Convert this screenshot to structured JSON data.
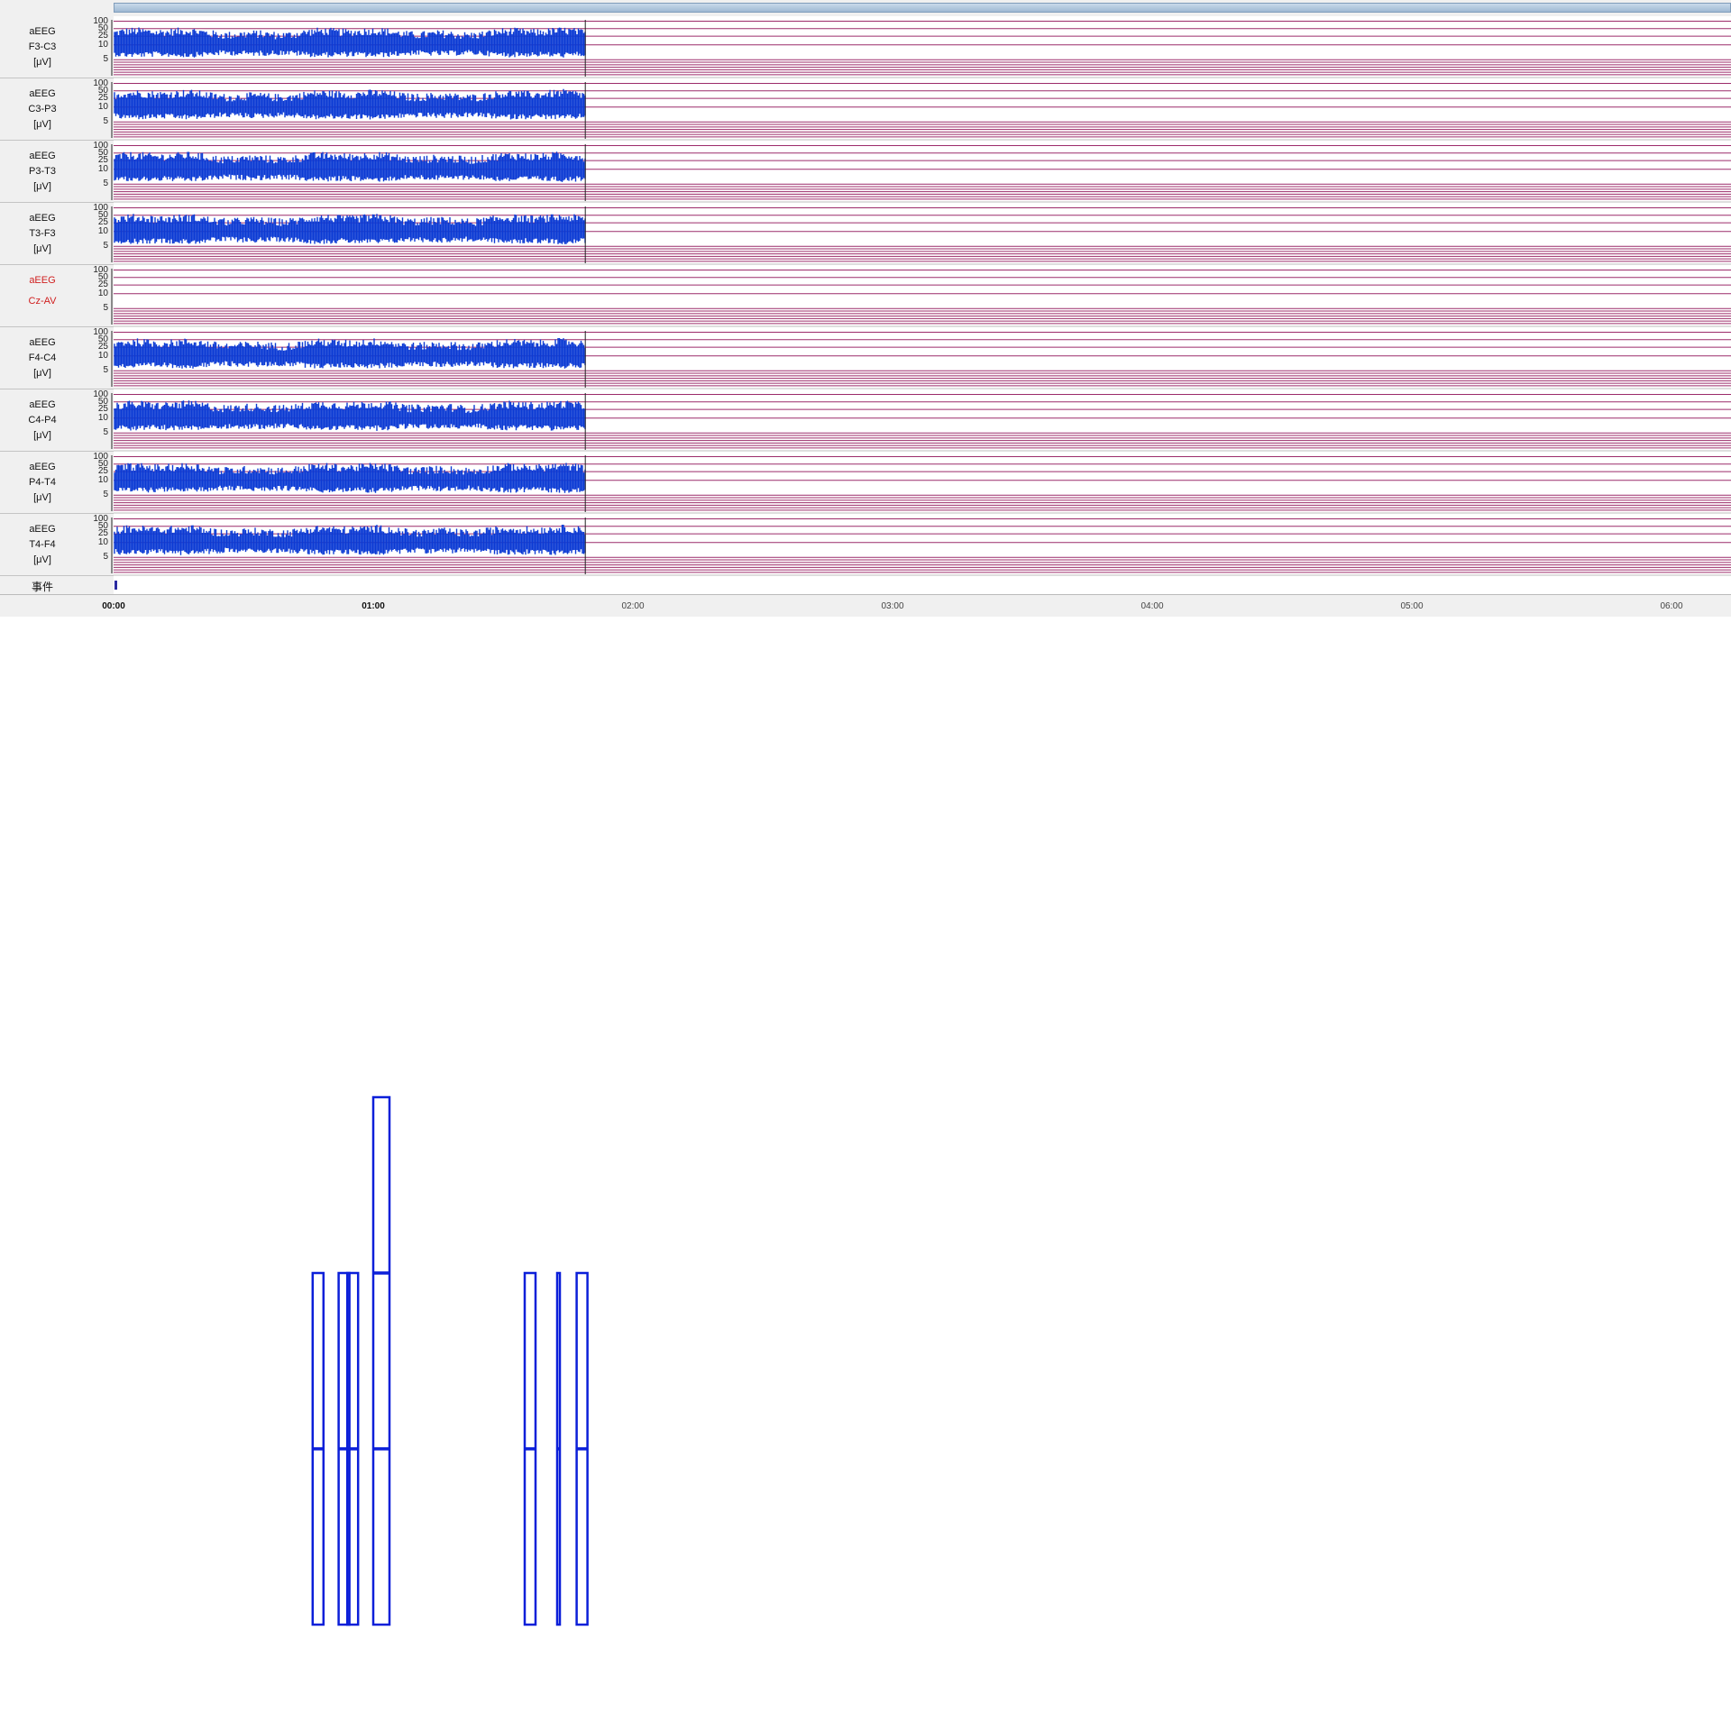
{
  "channels": [
    {
      "title": "aEEG",
      "lead": "F3-C3",
      "unit": "[μV]",
      "has_data": true,
      "active": false
    },
    {
      "title": "aEEG",
      "lead": "C3-P3",
      "unit": "[μV]",
      "has_data": true,
      "active": false
    },
    {
      "title": "aEEG",
      "lead": "P3-T3",
      "unit": "[μV]",
      "has_data": true,
      "active": false
    },
    {
      "title": "aEEG",
      "lead": "T3-F3",
      "unit": "[μV]",
      "has_data": true,
      "active": false
    },
    {
      "title": "aEEG",
      "lead": "Cz-AV",
      "unit": "",
      "has_data": false,
      "active": true
    },
    {
      "title": "aEEG",
      "lead": "F4-C4",
      "unit": "[μV]",
      "has_data": true,
      "active": false
    },
    {
      "title": "aEEG",
      "lead": "C4-P4",
      "unit": "[μV]",
      "has_data": true,
      "active": false
    },
    {
      "title": "aEEG",
      "lead": "P4-T4",
      "unit": "[μV]",
      "has_data": true,
      "active": false
    },
    {
      "title": "aEEG",
      "lead": "T4-F4",
      "unit": "[μV]",
      "has_data": true,
      "active": false
    }
  ],
  "scale_labels": [
    "100",
    "50",
    "25",
    "10",
    "5"
  ],
  "events_label": "事件",
  "time_ticks": [
    {
      "label": "00:00",
      "bold": true
    },
    {
      "label": "01:00",
      "bold": true
    },
    {
      "label": "02:00",
      "bold": false
    },
    {
      "label": "03:00",
      "bold": false
    },
    {
      "label": "04:00",
      "bold": false
    },
    {
      "label": "05:00",
      "bold": false
    },
    {
      "label": "06:00",
      "bold": false
    }
  ],
  "recording": {
    "recorded_end_time_min": 109
  },
  "colors": {
    "signal": "#0b3ad4",
    "grid": "#9c2b6a",
    "box": "#0b1fd9",
    "active_label": "#d02020"
  },
  "chart_data": {
    "type": "box",
    "boxes": [
      {
        "x_min": 46,
        "q1": 0,
        "median": 1,
        "q3": 2
      },
      {
        "x_min": 52,
        "q1": 0,
        "median": 1,
        "q3": 2
      },
      {
        "x_min": 54,
        "q1": 0,
        "median": 1,
        "q3": 2
      },
      {
        "x_min": 60,
        "q1": 0,
        "median": 1,
        "q3": 3
      },
      {
        "x_min": 95,
        "q1": 0,
        "median": 1,
        "q3": 2
      },
      {
        "x_min": 102.5,
        "q1": 0,
        "median": 1,
        "q3": 2
      },
      {
        "x_min": 107,
        "q1": 0,
        "median": 1,
        "q3": 2
      }
    ]
  }
}
